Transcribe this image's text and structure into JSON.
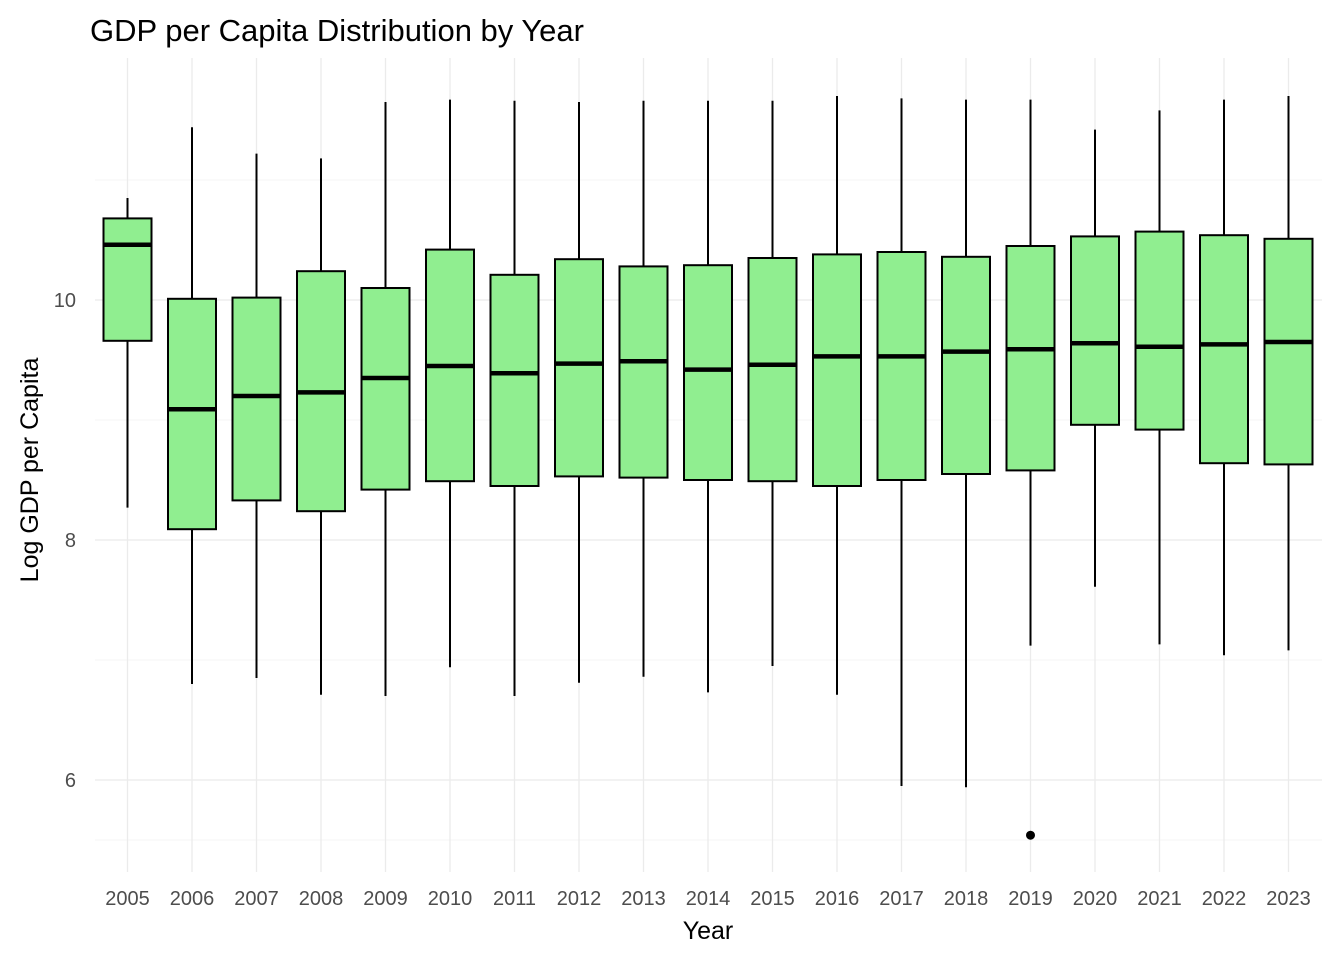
{
  "chart_data": {
    "type": "box",
    "title": "GDP per Capita Distribution by Year",
    "xlabel": "Year",
    "ylabel": "Log GDP per Capita",
    "ylim": [
      5.2,
      11.95
    ],
    "yticks": [
      6,
      8,
      10
    ],
    "grid": true,
    "box_fill": "#90ee90",
    "box_stroke": "#000000",
    "categories": [
      "2005",
      "2006",
      "2007",
      "2008",
      "2009",
      "2010",
      "2011",
      "2012",
      "2013",
      "2014",
      "2015",
      "2016",
      "2017",
      "2018",
      "2019",
      "2020",
      "2021",
      "2022",
      "2023"
    ],
    "boxes": [
      {
        "year": "2005",
        "min": 8.27,
        "q1": 9.66,
        "median": 10.46,
        "q3": 10.68,
        "max": 10.85,
        "outliers": []
      },
      {
        "year": "2006",
        "min": 6.8,
        "q1": 8.09,
        "median": 9.09,
        "q3": 10.01,
        "max": 11.44,
        "outliers": []
      },
      {
        "year": "2007",
        "min": 6.85,
        "q1": 8.33,
        "median": 9.2,
        "q3": 10.02,
        "max": 11.22,
        "outliers": []
      },
      {
        "year": "2008",
        "min": 6.71,
        "q1": 8.24,
        "median": 9.23,
        "q3": 10.24,
        "max": 11.18,
        "outliers": []
      },
      {
        "year": "2009",
        "min": 6.7,
        "q1": 8.42,
        "median": 9.35,
        "q3": 10.1,
        "max": 11.65,
        "outliers": []
      },
      {
        "year": "2010",
        "min": 6.94,
        "q1": 8.49,
        "median": 9.45,
        "q3": 10.42,
        "max": 11.67,
        "outliers": []
      },
      {
        "year": "2011",
        "min": 6.7,
        "q1": 8.45,
        "median": 9.39,
        "q3": 10.21,
        "max": 11.66,
        "outliers": []
      },
      {
        "year": "2012",
        "min": 6.81,
        "q1": 8.53,
        "median": 9.47,
        "q3": 10.34,
        "max": 11.65,
        "outliers": []
      },
      {
        "year": "2013",
        "min": 6.86,
        "q1": 8.52,
        "median": 9.49,
        "q3": 10.28,
        "max": 11.66,
        "outliers": []
      },
      {
        "year": "2014",
        "min": 6.73,
        "q1": 8.5,
        "median": 9.42,
        "q3": 10.29,
        "max": 11.66,
        "outliers": []
      },
      {
        "year": "2015",
        "min": 6.95,
        "q1": 8.49,
        "median": 9.46,
        "q3": 10.35,
        "max": 11.66,
        "outliers": []
      },
      {
        "year": "2016",
        "min": 6.71,
        "q1": 8.45,
        "median": 9.53,
        "q3": 10.38,
        "max": 11.7,
        "outliers": []
      },
      {
        "year": "2017",
        "min": 5.95,
        "q1": 8.5,
        "median": 9.53,
        "q3": 10.4,
        "max": 11.68,
        "outliers": []
      },
      {
        "year": "2018",
        "min": 5.94,
        "q1": 8.55,
        "median": 9.57,
        "q3": 10.36,
        "max": 11.67,
        "outliers": []
      },
      {
        "year": "2019",
        "min": 7.12,
        "q1": 8.58,
        "median": 9.59,
        "q3": 10.45,
        "max": 11.67,
        "outliers": [
          5.54
        ]
      },
      {
        "year": "2020",
        "min": 7.61,
        "q1": 8.96,
        "median": 9.64,
        "q3": 10.53,
        "max": 11.42,
        "outliers": []
      },
      {
        "year": "2021",
        "min": 7.13,
        "q1": 8.92,
        "median": 9.61,
        "q3": 10.57,
        "max": 11.58,
        "outliers": []
      },
      {
        "year": "2022",
        "min": 7.04,
        "q1": 8.64,
        "median": 9.63,
        "q3": 10.54,
        "max": 11.67,
        "outliers": []
      },
      {
        "year": "2023",
        "min": 7.08,
        "q1": 8.63,
        "median": 9.65,
        "q3": 10.51,
        "max": 11.7,
        "outliers": []
      }
    ]
  }
}
